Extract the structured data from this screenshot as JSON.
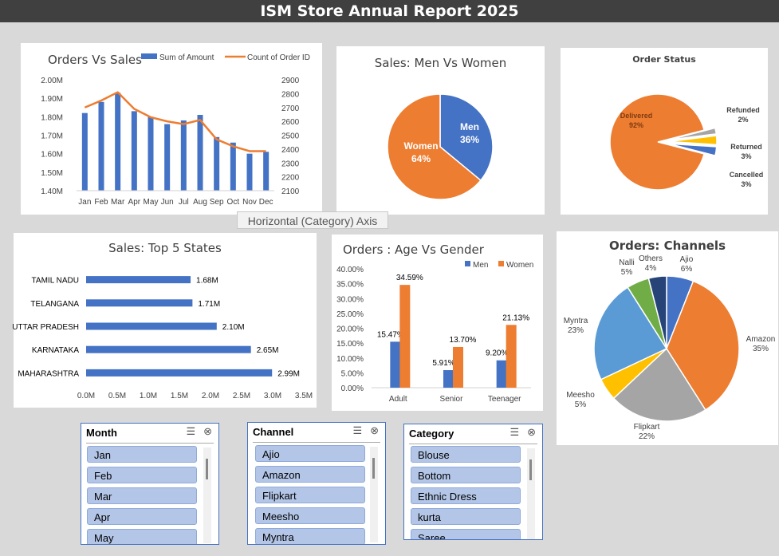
{
  "header": {
    "title": "ISM Store Annual Report 2025"
  },
  "tooltip": "Horizontal (Category) Axis",
  "chart_data": [
    {
      "id": "orders_vs_sales",
      "type": "bar",
      "title": "Orders Vs Sales",
      "legend": [
        "Sum of Amount",
        "Count of Order ID"
      ],
      "legend_position": "top",
      "categories": [
        "Jan",
        "Feb",
        "Mar",
        "Apr",
        "May",
        "Jun",
        "Jul",
        "Aug",
        "Sep",
        "Oct",
        "Nov",
        "Dec"
      ],
      "series": [
        {
          "name": "Sum of Amount",
          "type": "bar",
          "axis": "left",
          "values": [
            1.82,
            1.88,
            1.93,
            1.83,
            1.8,
            1.76,
            1.78,
            1.81,
            1.69,
            1.66,
            1.6,
            1.61
          ]
        },
        {
          "name": "Count of Order ID",
          "type": "line",
          "axis": "right",
          "values": [
            2700,
            2750,
            2810,
            2690,
            2630,
            2600,
            2580,
            2610,
            2470,
            2420,
            2385,
            2385
          ]
        }
      ],
      "y_ticks": [
        "1.40M",
        "1.50M",
        "1.60M",
        "1.70M",
        "1.80M",
        "1.90M",
        "2.00M"
      ],
      "ylim": [
        1.4,
        2.0
      ],
      "y2_ticks": [
        "2100",
        "2200",
        "2300",
        "2400",
        "2500",
        "2600",
        "2700",
        "2800",
        "2900"
      ],
      "y2lim": [
        2100,
        2900
      ],
      "color_bar": "#4472c4",
      "color_line": "#ed7d31"
    },
    {
      "id": "men_vs_women",
      "type": "pie",
      "title": "Sales: Men Vs Women",
      "slices": [
        {
          "label": "Men",
          "pct": "36%",
          "value": 36,
          "color": "#4472c4"
        },
        {
          "label": "Women",
          "pct": "64%",
          "value": 64,
          "color": "#ed7d31"
        }
      ]
    },
    {
      "id": "order_status",
      "type": "pie",
      "title": "Order Status",
      "slices": [
        {
          "label": "Delivered",
          "pct": "92%",
          "value": 92,
          "color": "#ed7d31"
        },
        {
          "label": "Refunded",
          "pct": "2%",
          "value": 2,
          "color": "#a5a5a5"
        },
        {
          "label": "Returned",
          "pct": "3%",
          "value": 3,
          "color": "#ffc000"
        },
        {
          "label": "Cancelled",
          "pct": "3%",
          "value": 3,
          "color": "#4472c4"
        }
      ]
    },
    {
      "id": "top_states",
      "type": "bar",
      "orientation": "horizontal",
      "title": "Sales: Top  5 States",
      "categories": [
        "TAMIL NADU",
        "TELANGANA",
        "UTTAR PRADESH",
        "KARNATAKA",
        "MAHARASHTRA"
      ],
      "values": [
        1.68,
        1.71,
        2.1,
        2.65,
        2.99
      ],
      "labels": [
        "1.68M",
        "1.71M",
        "2.10M",
        "2.65M",
        "2.99M"
      ],
      "x_ticks": [
        "0.0M",
        "0.5M",
        "1.0M",
        "1.5M",
        "2.0M",
        "2.5M",
        "3.0M",
        "3.5M"
      ],
      "xlim": [
        0,
        3.5
      ],
      "color": "#4472c4"
    },
    {
      "id": "age_vs_gender",
      "type": "bar",
      "title": "Orders : Age Vs Gender",
      "legend": [
        "Men",
        "Women"
      ],
      "legend_position": "top-right",
      "categories": [
        "Adult",
        "Senior",
        "Teenager"
      ],
      "series": [
        {
          "name": "Men",
          "values": [
            15.47,
            5.91,
            9.2
          ],
          "labels": [
            "15.47%",
            "5.91%",
            "9.20%"
          ],
          "color": "#4472c4"
        },
        {
          "name": "Women",
          "values": [
            34.59,
            13.7,
            21.13
          ],
          "labels": [
            "34.59%",
            "13.70%",
            "21.13%"
          ],
          "color": "#ed7d31"
        }
      ],
      "y_ticks": [
        "0.00%",
        "5.00%",
        "10.00%",
        "15.00%",
        "20.00%",
        "25.00%",
        "30.00%",
        "35.00%",
        "40.00%"
      ],
      "ylim": [
        0,
        40
      ]
    },
    {
      "id": "channels",
      "type": "pie",
      "title": "Orders: Channels",
      "slices": [
        {
          "label": "Ajio",
          "pct": "6%",
          "value": 6,
          "color": "#4472c4"
        },
        {
          "label": "Amazon",
          "pct": "35%",
          "value": 35,
          "color": "#ed7d31"
        },
        {
          "label": "Flipkart",
          "pct": "22%",
          "value": 22,
          "color": "#a5a5a5"
        },
        {
          "label": "Meesho",
          "pct": "5%",
          "value": 5,
          "color": "#ffc000"
        },
        {
          "label": "Myntra",
          "pct": "23%",
          "value": 23,
          "color": "#5b9bd5"
        },
        {
          "label": "Nalli",
          "pct": "5%",
          "value": 5,
          "color": "#70ad47"
        },
        {
          "label": "Others",
          "pct": "4%",
          "value": 4,
          "color": "#264478"
        }
      ]
    }
  ],
  "slicers": {
    "month": {
      "title": "Month",
      "items": [
        "Jan",
        "Feb",
        "Mar",
        "Apr",
        "May"
      ]
    },
    "channel": {
      "title": "Channel",
      "items": [
        "Ajio",
        "Amazon",
        "Flipkart",
        "Meesho",
        "Myntra"
      ]
    },
    "category": {
      "title": "Category",
      "items": [
        "Blouse",
        "Bottom",
        "Ethnic Dress",
        "kurta",
        "Saree"
      ]
    }
  }
}
